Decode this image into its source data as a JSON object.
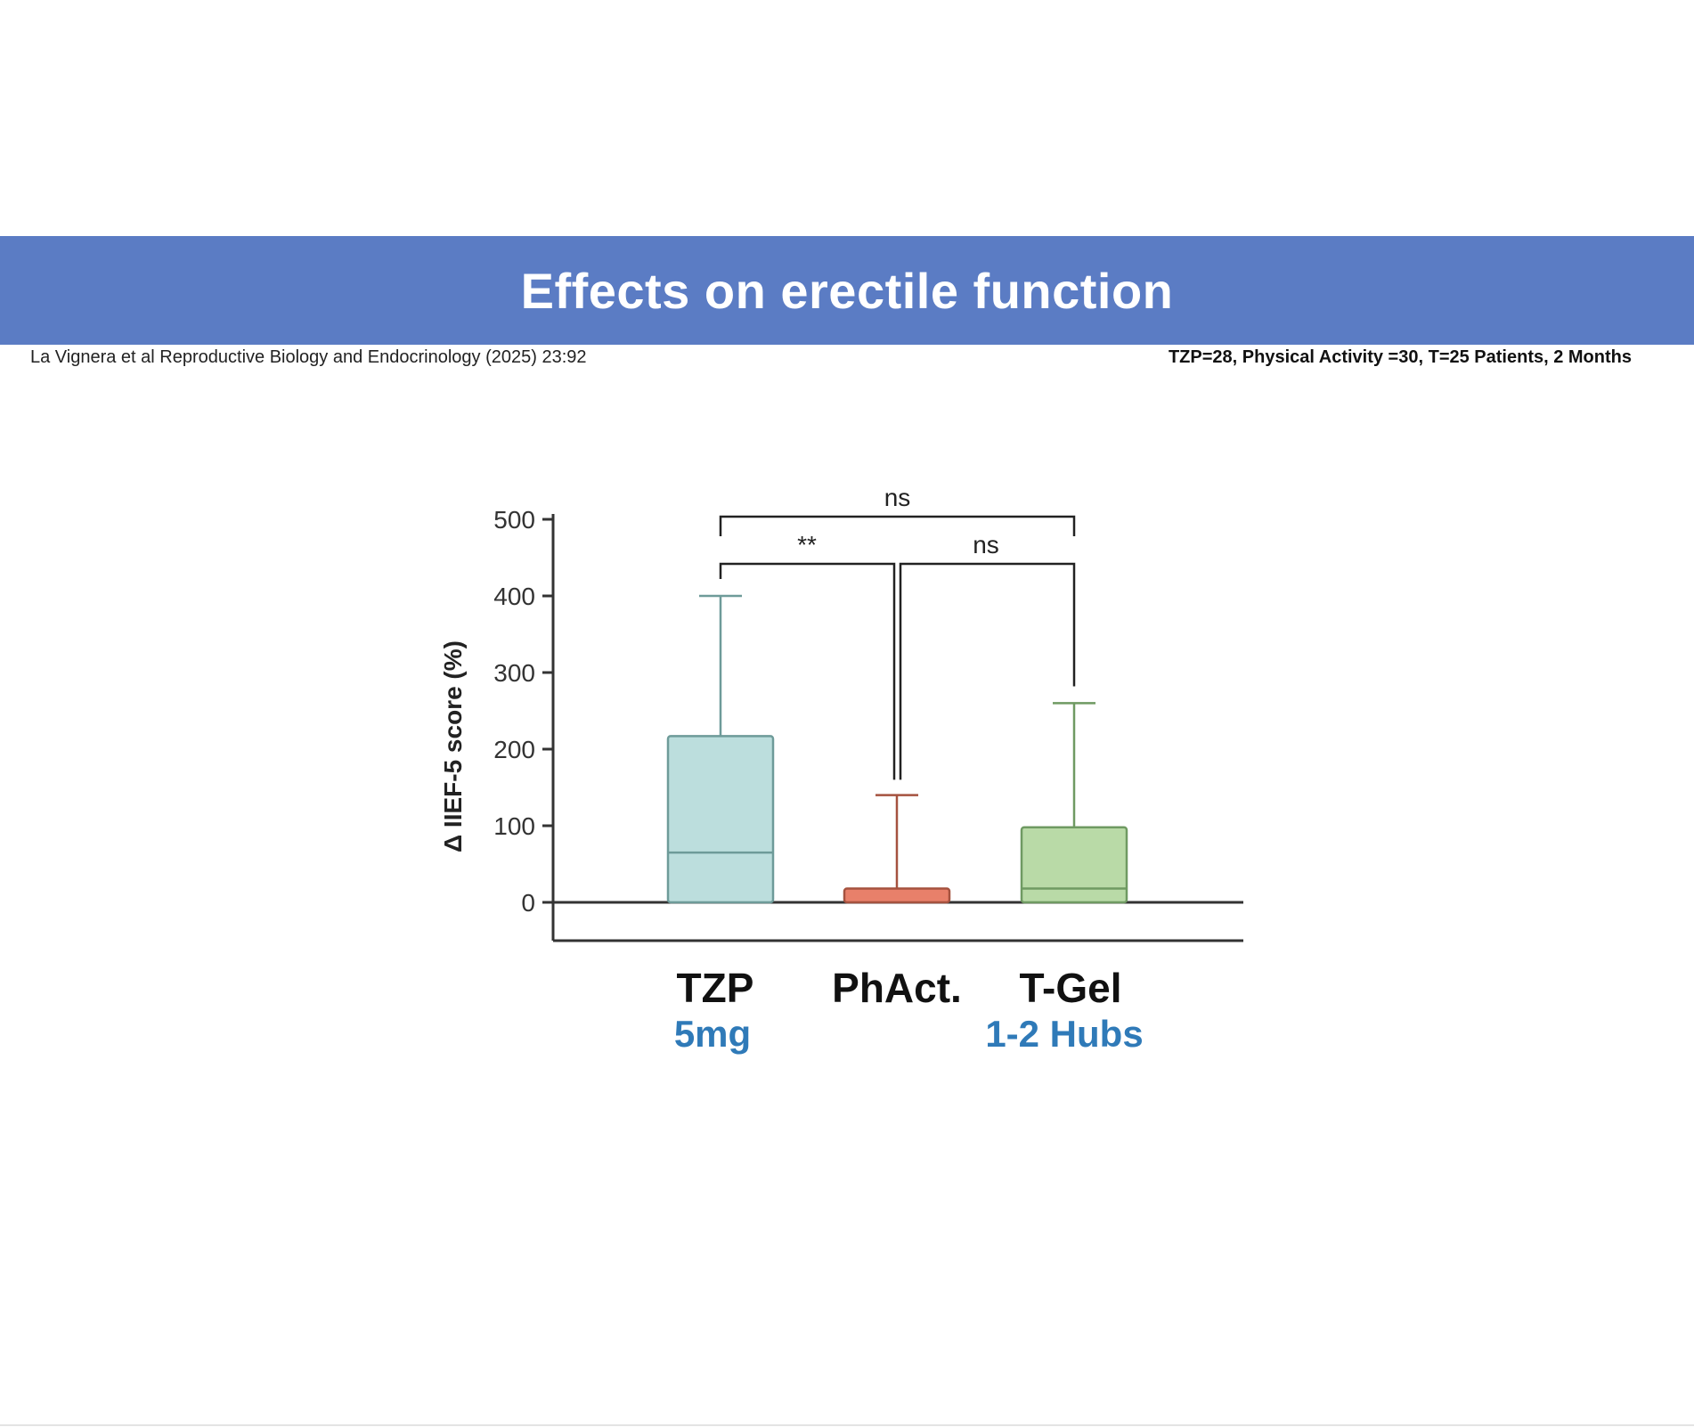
{
  "slide": {
    "title": "Effects on erectile function",
    "citation": "La Vignera et al Reproductive Biology and Endocrinology (2025) 23:92",
    "meta": "TZP=28, Physical Activity =30, T=25 Patients, 2 Months",
    "colors": {
      "banner": "#5b7cc4",
      "banner_text": "#ffffff",
      "sublabel": "#2f7ab8"
    }
  },
  "chart_data": {
    "type": "box",
    "ylabel": "Δ IIEF-5 score (%)",
    "xlabel": "",
    "ylim": [
      -50,
      500
    ],
    "yticks": [
      0,
      100,
      200,
      300,
      400,
      500
    ],
    "ytick_labels": [
      "0",
      "100",
      "200",
      "300",
      "400",
      "500"
    ],
    "categories": [
      {
        "name": "TZP",
        "sublabel": "5mg",
        "q1": 0,
        "median": 65,
        "q3": 217,
        "whisker_low": 0,
        "whisker_high": 400,
        "color": "#bcdedd",
        "edge": "#6e9b99"
      },
      {
        "name": "PhAct.",
        "sublabel": "",
        "q1": 0,
        "median": 0,
        "q3": 18,
        "whisker_low": 0,
        "whisker_high": 140,
        "color": "#e8806a",
        "edge": "#a5523f"
      },
      {
        "name": "T-Gel",
        "sublabel": "1-2 Hubs",
        "q1": 0,
        "median": 18,
        "q3": 98,
        "whisker_low": 0,
        "whisker_high": 260,
        "color": "#b9daa7",
        "edge": "#6f9a62"
      }
    ],
    "comparisons": [
      {
        "from": 0,
        "to": 2,
        "label": "ns",
        "level": 2
      },
      {
        "from": 0,
        "to": 1,
        "label": "**",
        "level": 1
      },
      {
        "from": 1,
        "to": 2,
        "label": "ns",
        "level": 1
      }
    ]
  }
}
